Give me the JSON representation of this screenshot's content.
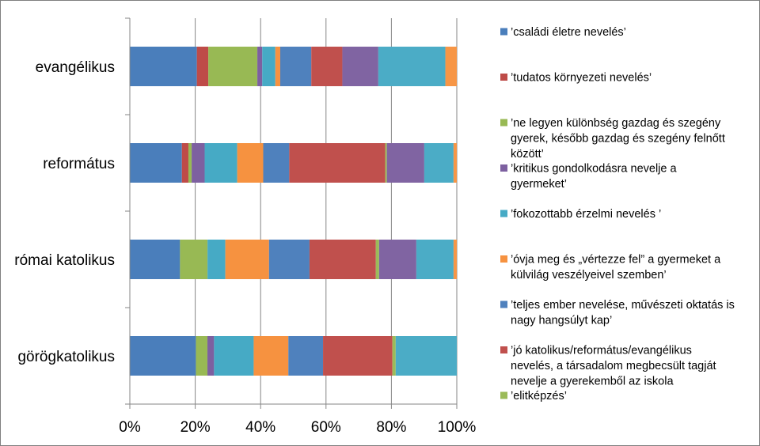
{
  "chart_data": {
    "type": "bar",
    "orientation": "horizontal",
    "stacked": "percent",
    "title": "",
    "xlabel": "",
    "ylabel": "",
    "xlim": [
      0,
      100
    ],
    "x_ticks": [
      "0%",
      "20%",
      "40%",
      "60%",
      "80%",
      "100%"
    ],
    "grid": true,
    "legend_position": "right",
    "categories": [
      "evangélikus",
      "református",
      "római katolikus",
      "görögkatolikus"
    ],
    "series": [
      {
        "name": "’családi életre nevelés’",
        "color": "#4a7ebb",
        "values": [
          20.5,
          16,
          15.5,
          20
        ],
        "lines": [
          "’családi életre nevelés’"
        ]
      },
      {
        "name": "’tudatos környezeti nevelés’",
        "color": "#be4b48",
        "values": [
          3.5,
          2,
          0,
          0
        ],
        "lines": [
          "’tudatos környezeti nevelés’"
        ]
      },
      {
        "name": "’ne legyen különbség gazdag és szegény gyerek, később gazdag és szegény felnőtt között’",
        "color": "#98b954",
        "values": [
          15,
          1,
          8.5,
          3.5
        ],
        "lines": [
          "’ne legyen különbség gazdag és szegény",
          "gyerek, később gazdag és szegény felnőtt",
          "között’"
        ]
      },
      {
        "name": "’kritikus gondolkodásra nevelje a gyermeket’",
        "color": "#7d60a0",
        "values": [
          1.5,
          4,
          0,
          2
        ],
        "lines": [
          "’kritikus gondolkodásra nevelje a",
          "gyermeket’"
        ]
      },
      {
        "name": "’fokozottabb érzelmi nevelés ’",
        "color": "#46aac5",
        "values": [
          4,
          10,
          5.5,
          12
        ],
        "lines": [
          "’fokozottabb érzelmi nevelés ’"
        ]
      },
      {
        "name": "’óvja meg és „vértezze fel” a gyermeket a külvilág veszélyeivel szemben’",
        "color": "#f69240",
        "values": [
          1.5,
          8,
          13.5,
          10.5
        ],
        "lines": [
          "’óvja meg és „vértezze fel” a gyermeket a",
          "külvilág veszélyeivel szemben’"
        ]
      },
      {
        "name": "’teljes ember nevelése, művészeti oktatás is nagy hangsúlyt kap’",
        "color": "#4f81bd",
        "values": [
          9.5,
          8,
          12.5,
          10.5
        ],
        "lines": [
          "’teljes ember nevelése, művészeti oktatás is",
          "nagy hangsúlyt kap’"
        ]
      },
      {
        "name": "’jó katolikus/református/evangélikus nevelés, a társadalom megbecsült tagját nevelje a gyerekemből az iskola",
        "color": "#c0504d",
        "values": [
          9.5,
          29.5,
          20.5,
          21
        ],
        "lines": [
          "’jó katolikus/református/evangélikus",
          "nevelés, a társadalom megbecsült tagját",
          "nevelje a gyerekemből az iskola"
        ]
      },
      {
        "name": "’elitképzés’",
        "color": "#9bbb59",
        "values": [
          0,
          0.5,
          1,
          1
        ],
        "lines": [
          "’elitképzés’"
        ]
      },
      {
        "name": "",
        "color": "#8064a2",
        "values": [
          11,
          11.5,
          11.5,
          0
        ],
        "lines": []
      },
      {
        "name": "",
        "color": "#4bacc6",
        "values": [
          20.5,
          9,
          11.5,
          18.5
        ],
        "lines": []
      },
      {
        "name": "",
        "color": "#f79646",
        "values": [
          3.5,
          1,
          1,
          0
        ],
        "lines": []
      }
    ]
  }
}
